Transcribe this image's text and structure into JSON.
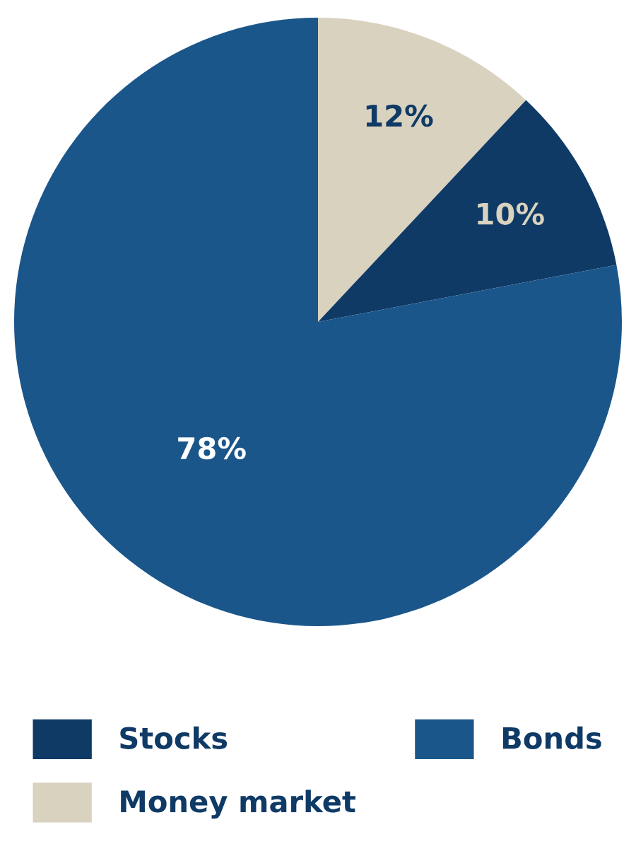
{
  "chart_data": {
    "type": "pie",
    "categories": [
      "Money market",
      "Stocks",
      "Bonds"
    ],
    "values": [
      12,
      10,
      78
    ],
    "colors": [
      "#d9d2bf",
      "#0f3a66",
      "#1b568b"
    ],
    "value_labels": [
      "12%",
      "10%",
      "78%"
    ],
    "legend": "bottom"
  }
}
